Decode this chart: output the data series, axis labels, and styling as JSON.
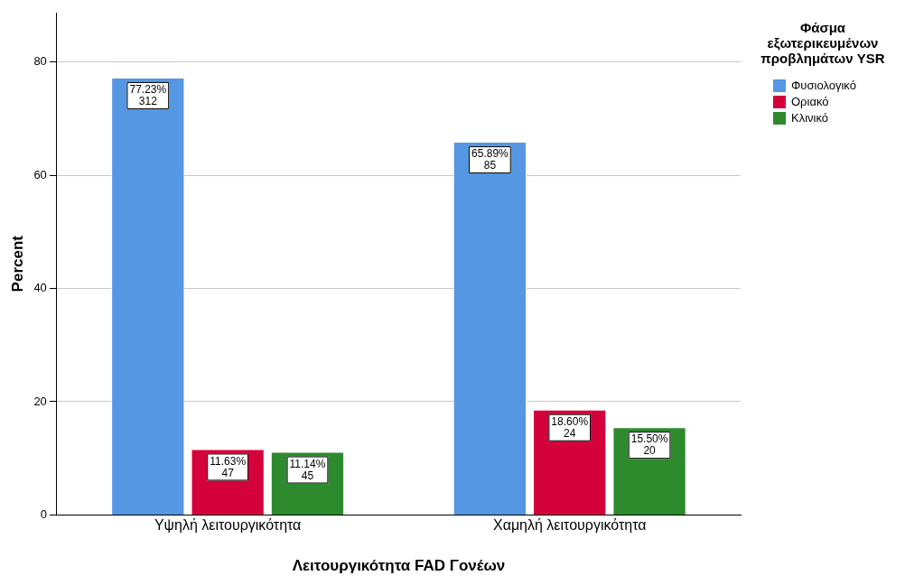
{
  "chart_data": {
    "type": "bar",
    "xlabel": "Λειτουργικότητα FAD Γονέων",
    "ylabel": "Percent",
    "legend_title": "Φάσμα εξωτερικευμένων προβλημάτων YSR",
    "categories": [
      "Υψηλή λειτουργικότητα",
      "Χαμηλή λειτουργικότητα"
    ],
    "series": [
      {
        "name": "Φυσιολογικό",
        "color": "#5597e3",
        "values": [
          77.23,
          65.89
        ],
        "value_labels": [
          "77.23%\n312",
          "65.89%\n85"
        ]
      },
      {
        "name": "Οριακό",
        "color": "#d5013a",
        "values": [
          11.63,
          18.6
        ],
        "value_labels": [
          "11.63%\n47",
          "18.60%\n24"
        ]
      },
      {
        "name": "Κλινικό",
        "color": "#2d8a2d",
        "values": [
          11.14,
          15.5
        ],
        "value_labels": [
          "11.14%\n45",
          "15.50%\n20"
        ]
      }
    ],
    "ylim": [
      0,
      88.7
    ],
    "yticks": [
      0,
      20,
      40,
      60,
      80
    ],
    "grid": "y",
    "legend": "right"
  }
}
